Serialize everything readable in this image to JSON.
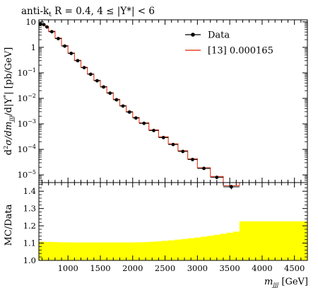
{
  "chart_data": [
    {
      "type": "line",
      "panel": "main",
      "title": "anti-k",
      "title_sub": "t",
      "title_rest": " R = 0.4, 4 ≤ |Y*| < 6",
      "ylabel": "d²σ/dm_jjj/d|Y*| [pb/GeV]",
      "ylabel_parts": {
        "a": "d",
        "b": "2",
        "c": "σ/dm",
        "d": "jjj",
        "e": "/d|Y",
        "f": "*",
        "g": "| [pb/GeV]"
      },
      "xlim": [
        550,
        4700
      ],
      "ylim": [
        5e-06,
        12
      ],
      "log_y": true,
      "yticks": [
        {
          "v": 10,
          "m": "10",
          "e": ""
        },
        {
          "v": 1,
          "m": "1",
          "e": ""
        },
        {
          "v": 0.1,
          "m": "10",
          "e": "−1"
        },
        {
          "v": 0.01,
          "m": "10",
          "e": "−2"
        },
        {
          "v": 0.001,
          "m": "10",
          "e": "−3"
        },
        {
          "v": 0.0001,
          "m": "10",
          "e": "−4"
        },
        {
          "v": 1e-05,
          "m": "10",
          "e": "−5"
        }
      ],
      "legend": {
        "placement": "top-right",
        "entries": [
          "Data",
          "[13] 0.000165"
        ]
      },
      "data_color": "#000000",
      "mc_color": "#e5452b",
      "bin_edges": [
        550,
        600,
        650,
        700,
        800,
        900,
        1000,
        1100,
        1200,
        1300,
        1400,
        1500,
        1600,
        1700,
        1800,
        1900,
        2000,
        2100,
        2250,
        2400,
        2550,
        2700,
        2850,
        3000,
        3200,
        3400,
        3650
      ],
      "data_values": [
        8.2,
        7.8,
        6.3,
        4.1,
        2.2,
        1.12,
        0.58,
        0.3,
        0.16,
        0.088,
        0.049,
        0.028,
        0.016,
        0.0088,
        0.005,
        0.0029,
        0.0017,
        0.00105,
        0.00055,
        0.00029,
        0.000155,
        8.3e-05,
        4e-05,
        1.8e-05,
        8e-06,
        3.4e-06
      ],
      "data_errors_rel": [
        0.02,
        0.02,
        0.02,
        0.02,
        0.02,
        0.02,
        0.02,
        0.02,
        0.02,
        0.02,
        0.02,
        0.02,
        0.02,
        0.02,
        0.02,
        0.03,
        0.03,
        0.03,
        0.03,
        0.04,
        0.05,
        0.06,
        0.08,
        0.1,
        0.14,
        0.2
      ],
      "mc_values": [
        8.5,
        8.0,
        6.5,
        4.3,
        2.3,
        1.18,
        0.6,
        0.31,
        0.165,
        0.091,
        0.051,
        0.029,
        0.0166,
        0.0092,
        0.0052,
        0.003,
        0.00178,
        0.0011,
        0.00058,
        0.00031,
        0.000165,
        8.9e-05,
        4.3e-05,
        1.9e-05,
        8.7e-06,
        3.8e-06
      ]
    },
    {
      "type": "area",
      "panel": "ratio",
      "ylabel": "MC/Data",
      "xlabel": "m",
      "xlabel_sub": "jjj",
      "xlabel_unit": " [GeV]",
      "xlim": [
        550,
        4700
      ],
      "ylim": [
        1.0,
        1.45
      ],
      "yticks": [
        "1.0",
        "1.1",
        "1.2",
        "1.3",
        "1.4"
      ],
      "xticks": [
        "1000",
        "1500",
        "2000",
        "2500",
        "3000",
        "3500",
        "4000",
        "4500"
      ],
      "band_color": "#ffff00",
      "band_edges": [
        550,
        650,
        750,
        850,
        950,
        1050,
        1150,
        1250,
        1350,
        1450,
        1550,
        1650,
        1750,
        1850,
        1950,
        2050,
        2150,
        2250,
        2350,
        2450,
        2550,
        2650,
        2750,
        2850,
        2950,
        3050,
        3150,
        3250,
        3350,
        3450,
        3550,
        3650,
        4700
      ],
      "band_upper": [
        1.108,
        1.107,
        1.106,
        1.105,
        1.105,
        1.104,
        1.104,
        1.104,
        1.104,
        1.104,
        1.104,
        1.104,
        1.104,
        1.104,
        1.104,
        1.105,
        1.106,
        1.108,
        1.11,
        1.113,
        1.116,
        1.12,
        1.124,
        1.128,
        1.132,
        1.137,
        1.142,
        1.148,
        1.154,
        1.16,
        1.166,
        1.226
      ],
      "band_lower": 1.0
    }
  ]
}
